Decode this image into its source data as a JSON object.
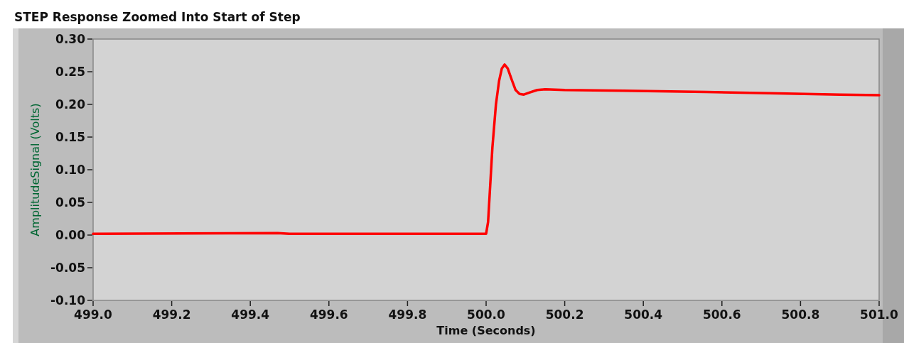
{
  "chart_data": {
    "type": "line",
    "title": "STEP Response Zoomed Into Start of Step",
    "xlabel": "Time (Seconds)",
    "ylabel": "AmplitudeSignal (Volts)",
    "xlim": [
      499.0,
      501.0
    ],
    "xticks": [
      {
        "value": 499,
        "label": "499.0"
      },
      499.2,
      499.4,
      499.6,
      499.8,
      {
        "value": 500,
        "label": "500.0"
      },
      500.2,
      500.4,
      500.6,
      500.8,
      {
        "value": 501,
        "label": "501.0"
      }
    ],
    "ylim": [
      -0.1,
      0.3
    ],
    "yticks": [
      {
        "value": -0.1,
        "label": "-0.10"
      },
      {
        "value": -0.05,
        "label": "-0.05"
      },
      {
        "value": 0,
        "label": "0.00"
      },
      {
        "value": 0.05,
        "label": "0.05"
      },
      {
        "value": 0.1,
        "label": "0.10"
      },
      {
        "value": 0.15,
        "label": "0.15"
      },
      {
        "value": 0.2,
        "label": "0.20"
      },
      {
        "value": 0.25,
        "label": "0.25"
      },
      {
        "value": 0.3,
        "label": "0.30"
      }
    ],
    "grid": false,
    "marker": "none",
    "line_style": "solid",
    "series": [
      {
        "color": "#ff0000",
        "x": [
          499.0,
          499.47,
          499.5,
          499.8,
          500.0,
          500.005,
          500.016,
          500.025,
          500.033,
          500.04,
          500.047,
          500.055,
          500.065,
          500.075,
          500.085,
          500.096,
          500.11,
          500.13,
          500.15,
          500.2,
          500.35,
          500.56,
          500.72,
          500.9,
          501.0
        ],
        "values": [
          0.002,
          0.003,
          0.002,
          0.002,
          0.002,
          0.02,
          0.134,
          0.2,
          0.236,
          0.255,
          0.261,
          0.255,
          0.238,
          0.222,
          0.216,
          0.215,
          0.218,
          0.222,
          0.223,
          0.222,
          0.221,
          0.219,
          0.217,
          0.215,
          0.214
        ]
      }
    ]
  }
}
